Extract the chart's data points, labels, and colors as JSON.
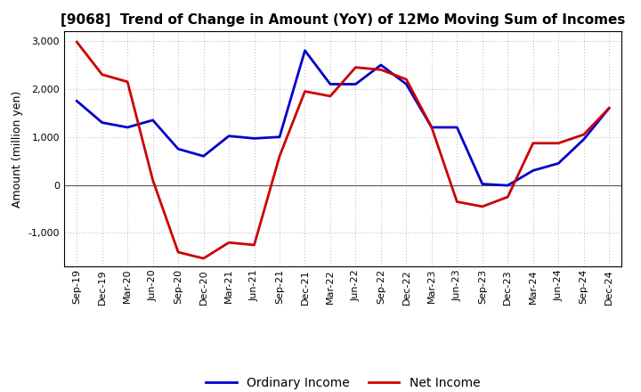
{
  "title": "[9068]  Trend of Change in Amount (YoY) of 12Mo Moving Sum of Incomes",
  "ylabel": "Amount (million yen)",
  "x_labels": [
    "Sep-19",
    "Dec-19",
    "Mar-20",
    "Jun-20",
    "Sep-20",
    "Dec-20",
    "Mar-21",
    "Jun-21",
    "Sep-21",
    "Dec-21",
    "Mar-22",
    "Jun-22",
    "Sep-22",
    "Dec-22",
    "Mar-23",
    "Jun-23",
    "Sep-23",
    "Dec-23",
    "Mar-24",
    "Jun-24",
    "Sep-24",
    "Dec-24"
  ],
  "ordinary_income": [
    1750,
    1300,
    1200,
    1350,
    750,
    600,
    1020,
    970,
    1000,
    2800,
    2100,
    2100,
    2500,
    2100,
    1200,
    1200,
    20,
    -10,
    300,
    450,
    950,
    1600
  ],
  "net_income": [
    2980,
    2300,
    2150,
    100,
    -1400,
    -1530,
    -1200,
    -1250,
    600,
    1950,
    1850,
    2450,
    2400,
    2200,
    1200,
    -350,
    -450,
    -250,
    870,
    870,
    1050,
    1600
  ],
  "ordinary_income_color": "#0000cc",
  "net_income_color": "#cc0000",
  "line_width": 2.0,
  "ylim": [
    -1700,
    3200
  ],
  "yticks": [
    -1000,
    0,
    1000,
    2000,
    3000
  ],
  "background_color": "#FFFFFF",
  "grid_color": "#999999",
  "legend_ordinary": "Ordinary Income",
  "legend_net": "Net Income",
  "title_fontsize": 11,
  "tick_fontsize": 8,
  "ylabel_fontsize": 9
}
